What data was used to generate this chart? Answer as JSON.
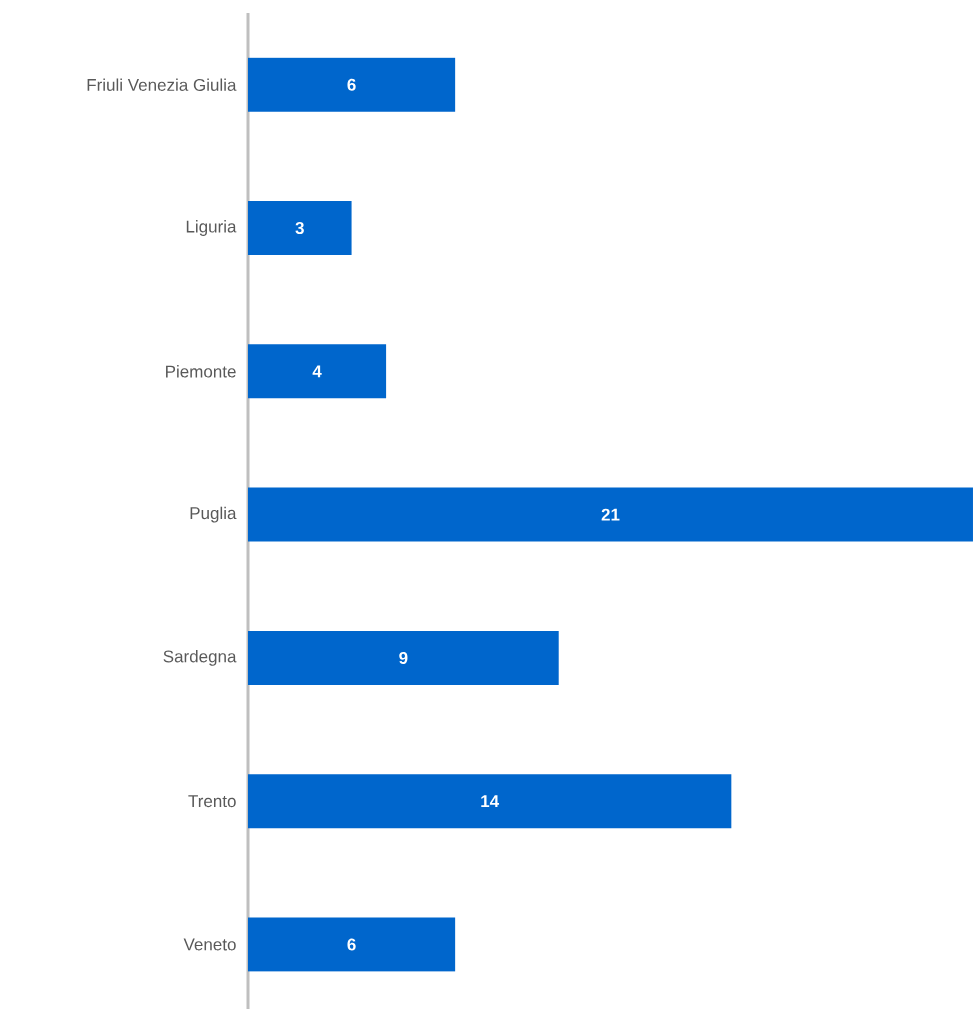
{
  "chart_data": {
    "type": "bar",
    "orientation": "horizontal",
    "categories": [
      "Friuli Venezia Giulia",
      "Liguria",
      "Piemonte",
      "Puglia",
      "Sardegna",
      "Trento",
      "Veneto"
    ],
    "values": [
      6,
      3,
      4,
      21,
      9,
      14,
      6
    ],
    "color": "#0066cc",
    "data_labels": true
  }
}
